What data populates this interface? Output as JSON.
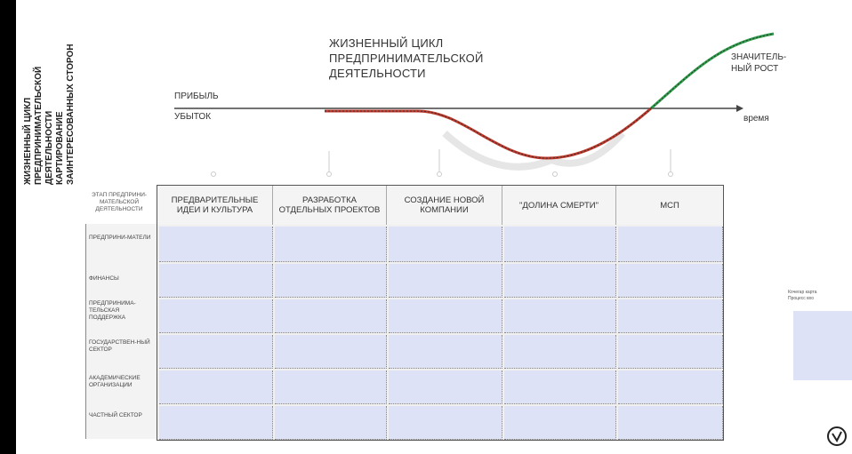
{
  "vertical_title": [
    "ЖИЗНЕННЫЙ ЦИКЛ",
    "ПРЕДПРИНИМАТЕЛЬСКОЙ",
    "ДЕЯТЕЛЬНОСТИ",
    "КАРТИРОВАНИЕ",
    "ЗАИНТЕРЕСОВАННЫХ СТОРОН"
  ],
  "title_lines": [
    "ЖИЗНЕННЫЙ ЦИКЛ",
    "ПРЕДПРИНИМАТЕЛЬСКОЙ",
    "ДЕЯТЕЛЬНОСТИ"
  ],
  "axis": {
    "profit": "ПРИБЫЛЬ",
    "loss": "УБЫТОК",
    "time": "время"
  },
  "growth_label": [
    "ЗНАЧИТЕЛЬ-",
    "НЫЙ РОСТ"
  ],
  "stage_label": "ЭТАП ПРЕДПРИНИ-МАТЕЛЬСКОЙ ДЕЯТЕЛЬНОСТИ",
  "stages": [
    "ПРЕДВАРИТЕЛЬНЫЕ ИДЕИ И КУЛЬТУРА",
    "РАЗРАБОТКА ОТДЕЛЬНЫХ ПРОЕКТОВ",
    "СОЗДАНИЕ НОВОЙ КОМПАНИИ",
    "\"ДОЛИНА СМЕРТИ\"",
    "МСП"
  ],
  "rows": [
    "ПРЕДПРИНИ-МАТЕЛИ",
    "ФИНАНСЫ",
    "ПРЕДПРИНИМА-ТЕЛЬСКАЯ ПОДДЕРЖКА",
    "ГОСУДАРСТВЕН-НЫЙ СЕКТОР",
    "АКАДЕМИЧЕСКИЕ ОРГАНИЗАЦИИ",
    "ЧАСТНЫЙ СЕКТОР"
  ],
  "colors": {
    "loss_curve": "#c0392b",
    "growth_curve": "#2e9e4a",
    "cell": "#dde2f7"
  }
}
